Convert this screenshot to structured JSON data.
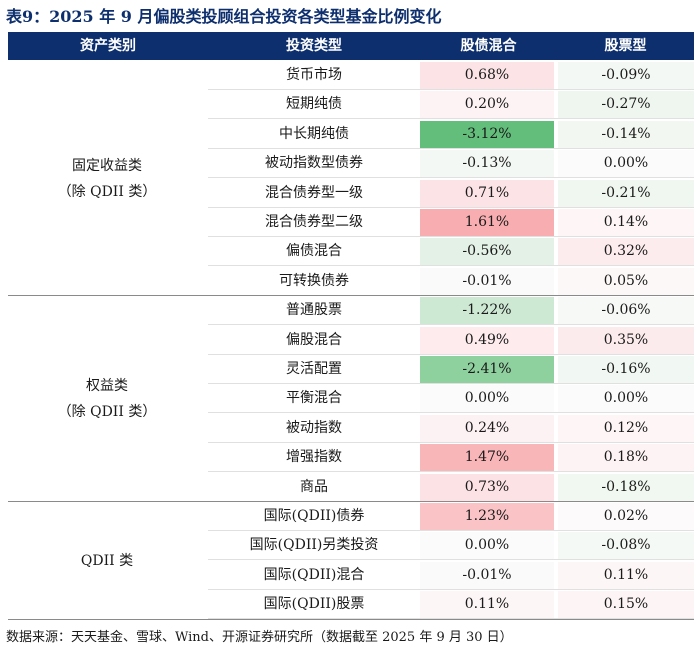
{
  "title": "表9：2025 年 9 月偏股类投顾组合投资各类型基金比例变化",
  "headers": {
    "asset_class": "资产类别",
    "fund_type": "投资类型",
    "mixed_bond": "股债混合",
    "stock": "股票型"
  },
  "groups": [
    {
      "line1": "固定收益类",
      "line2": "（除 QDII 类）",
      "rows": [
        {
          "type": "货币市场",
          "mixed": "0.68%",
          "stock": "-0.09%",
          "mixed_color": "#fce4e6",
          "stock_color": "#f4f8f4"
        },
        {
          "type": "短期纯债",
          "mixed": "0.20%",
          "stock": "-0.27%",
          "mixed_color": "#fdf3f4",
          "stock_color": "#eef6ef"
        },
        {
          "type": "中长期纯债",
          "mixed": "-3.12%",
          "stock": "-0.14%",
          "mixed_color": "#63be7b",
          "stock_color": "#f2f7f2"
        },
        {
          "type": "被动指数型债券",
          "mixed": "-0.13%",
          "stock": "0.00%",
          "mixed_color": "#f3f8f4",
          "stock_color": "#fbfbfb"
        },
        {
          "type": "混合债券型一级",
          "mixed": "0.71%",
          "stock": "-0.21%",
          "mixed_color": "#fce3e5",
          "stock_color": "#f0f6f0"
        },
        {
          "type": "混合债券型二级",
          "mixed": "1.61%",
          "stock": "0.14%",
          "mixed_color": "#f8aeb1",
          "stock_color": "#fdf5f6"
        },
        {
          "type": "偏债混合",
          "mixed": "-0.56%",
          "stock": "0.32%",
          "mixed_color": "#e4f1e6",
          "stock_color": "#fcecee"
        },
        {
          "type": "可转换债券",
          "mixed": "-0.01%",
          "stock": "0.05%",
          "mixed_color": "#fafafa",
          "stock_color": "#fdf8f8"
        }
      ]
    },
    {
      "line1": "权益类",
      "line2": "（除 QDII 类）",
      "rows": [
        {
          "type": "普通股票",
          "mixed": "-1.22%",
          "stock": "-0.06%",
          "mixed_color": "#cde8d3",
          "stock_color": "#f6f9f6"
        },
        {
          "type": "偏股混合",
          "mixed": "0.49%",
          "stock": "0.35%",
          "mixed_color": "#fdebed",
          "stock_color": "#fcebed"
        },
        {
          "type": "灵活配置",
          "mixed": "-2.41%",
          "stock": "-0.16%",
          "mixed_color": "#8fd09f",
          "stock_color": "#f1f7f2"
        },
        {
          "type": "平衡混合",
          "mixed": "0.00%",
          "stock": "0.00%",
          "mixed_color": "#fbfbfb",
          "stock_color": "#fbfbfb"
        },
        {
          "type": "被动指数",
          "mixed": "0.24%",
          "stock": "0.12%",
          "mixed_color": "#fdf2f3",
          "stock_color": "#fdf5f6"
        },
        {
          "type": "增强指数",
          "mixed": "1.47%",
          "stock": "0.18%",
          "mixed_color": "#f9b6b9",
          "stock_color": "#fdf3f4"
        },
        {
          "type": "商品",
          "mixed": "0.73%",
          "stock": "-0.18%",
          "mixed_color": "#fce2e4",
          "stock_color": "#f1f7f1"
        }
      ]
    },
    {
      "line1": "QDII 类",
      "line2": "",
      "rows": [
        {
          "type": "国际(QDII)债券",
          "mixed": "1.23%",
          "stock": "0.02%",
          "mixed_color": "#fac3c6",
          "stock_color": "#fcfafa"
        },
        {
          "type": "国际(QDII)另类投资",
          "mixed": "0.00%",
          "stock": "-0.08%",
          "mixed_color": "#fbfbfb",
          "stock_color": "#f5f9f5"
        },
        {
          "type": "国际(QDII)混合",
          "mixed": "-0.01%",
          "stock": "0.11%",
          "mixed_color": "#fafafa",
          "stock_color": "#fdf6f6"
        },
        {
          "type": "国际(QDII)股票",
          "mixed": "0.11%",
          "stock": "0.15%",
          "mixed_color": "#fdf6f6",
          "stock_color": "#fdf4f5"
        }
      ]
    }
  ],
  "footer": "数据来源：天天基金、雪球、Wind、开源证券研究所（数据截至 2025 年 9 月 30 日）"
}
